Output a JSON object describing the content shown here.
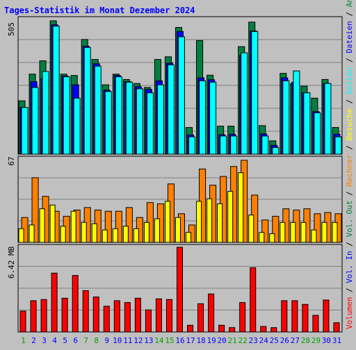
{
  "chart_data": [
    {
      "type": "bar",
      "title": "Tages-Statistik im Monat Dezember 2024",
      "ymax_label": "505",
      "ylim": [
        0,
        505
      ],
      "categories": [
        "1",
        "2",
        "3",
        "4",
        "5",
        "6",
        "7",
        "8",
        "9",
        "10",
        "11",
        "12",
        "13",
        "14",
        "15",
        "16",
        "17",
        "18",
        "19",
        "20",
        "21",
        "22",
        "23",
        "24",
        "25",
        "26",
        "27",
        "28",
        "29",
        "30",
        "31"
      ],
      "weekend_days": [
        "1",
        "7",
        "8",
        "14",
        "15",
        "21",
        "22",
        "28",
        "29"
      ],
      "grid": true,
      "legend_position": "right (vertical)",
      "series": [
        {
          "name": "Anfragen",
          "color": "#008040",
          "values": [
            200,
            300,
            350,
            500,
            300,
            295,
            430,
            355,
            260,
            300,
            280,
            265,
            250,
            355,
            365,
            475,
            100,
            426,
            296,
            105,
            105,
            403,
            495,
            107,
            50,
            303,
            265,
            255,
            210,
            280,
            100
          ]
        },
        {
          "name": "Dateien",
          "color": "#0000ff",
          "values": [
            175,
            272,
            284,
            485,
            293,
            260,
            405,
            339,
            240,
            295,
            272,
            253,
            243,
            275,
            341,
            460,
            72,
            286,
            279,
            73,
            75,
            370,
            462,
            76,
            33,
            286,
            270,
            230,
            160,
            265,
            75
          ]
        },
        {
          "name": "Seiten",
          "color": "#00ffff",
          "values": [
            175,
            250,
            310,
            480,
            290,
            210,
            400,
            330,
            235,
            290,
            270,
            245,
            230,
            260,
            335,
            440,
            65,
            275,
            270,
            68,
            68,
            380,
            460,
            68,
            25,
            275,
            312,
            230,
            155,
            265,
            65
          ]
        }
      ]
    },
    {
      "type": "bar",
      "ymax_label": "67",
      "ylim": [
        0,
        67
      ],
      "categories": [
        "1",
        "2",
        "3",
        "4",
        "5",
        "6",
        "7",
        "8",
        "9",
        "10",
        "11",
        "12",
        "13",
        "14",
        "15",
        "16",
        "17",
        "18",
        "19",
        "20",
        "21",
        "22",
        "23",
        "24",
        "25",
        "26",
        "27",
        "28",
        "29",
        "30",
        "31"
      ],
      "grid": true,
      "legend_position": "right (vertical)",
      "series": [
        {
          "name": "Rechner",
          "color": "#ff8000",
          "values": [
            20,
            52,
            37,
            25,
            21,
            26,
            28,
            26,
            25,
            25,
            28,
            20,
            32,
            31,
            47,
            23,
            14,
            59,
            46,
            53,
            61,
            66,
            38,
            18,
            21,
            27,
            26,
            27,
            23,
            24,
            23
          ]
        },
        {
          "name": "Besuche",
          "color": "#ffff00",
          "values": [
            11,
            14,
            27,
            30,
            13,
            25,
            16,
            15,
            10,
            11,
            13,
            11,
            16,
            19,
            33,
            20,
            8,
            33,
            35,
            31,
            41,
            56,
            22,
            8,
            7,
            16,
            16,
            16,
            10,
            16,
            16
          ]
        }
      ]
    },
    {
      "type": "bar",
      "ymax_label": "6.42 MB",
      "ylim": [
        0,
        6.42
      ],
      "categories": [
        "1",
        "2",
        "3",
        "4",
        "5",
        "6",
        "7",
        "8",
        "9",
        "10",
        "11",
        "12",
        "13",
        "14",
        "15",
        "16",
        "17",
        "18",
        "19",
        "20",
        "21",
        "22",
        "23",
        "24",
        "25",
        "26",
        "27",
        "28",
        "29",
        "30",
        "31"
      ],
      "grid": true,
      "legend_position": "right (vertical)",
      "series": [
        {
          "name": "Volumen",
          "color": "#ff0000",
          "values": [
            1.58,
            2.37,
            2.46,
            4.46,
            2.56,
            4.28,
            3.13,
            2.65,
            1.95,
            2.37,
            2.23,
            2.56,
            1.67,
            2.51,
            2.46,
            6.42,
            0.51,
            2.14,
            2.88,
            0.51,
            0.33,
            2.23,
            4.87,
            0.42,
            0.33,
            2.37,
            2.37,
            2.09,
            1.26,
            2.42,
            0.7
          ]
        }
      ]
    }
  ],
  "legend_right": [
    {
      "text": "Volumen",
      "color": "#ff0000"
    },
    {
      "text": " / ",
      "color": "#000000"
    },
    {
      "text": "Vol. In",
      "color": "#0000ff"
    },
    {
      "text": " / ",
      "color": "#000000"
    },
    {
      "text": "Vol. Out",
      "color": "#008040"
    },
    {
      "text": " / ",
      "color": "#000000"
    },
    {
      "text": "Rechner",
      "color": "#ff8000"
    },
    {
      "text": " / ",
      "color": "#000000"
    },
    {
      "text": "Besuche",
      "color": "#ffff00"
    },
    {
      "text": " / ",
      "color": "#000000"
    },
    {
      "text": "Seiten",
      "color": "#00ffff"
    },
    {
      "text": " / ",
      "color": "#000000"
    },
    {
      "text": "Dateien",
      "color": "#0000ff"
    },
    {
      "text": " / ",
      "color": "#000000"
    },
    {
      "text": "Anfragen",
      "color": "#008040"
    }
  ],
  "colors": {
    "background": "#c0c0c0",
    "title": "#0000ff",
    "weekday_label": "#0000ff",
    "weekend_label": "#00a000"
  }
}
